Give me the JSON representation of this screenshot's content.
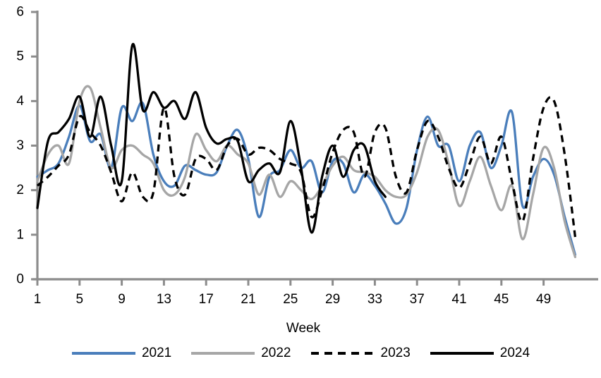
{
  "chart_data": {
    "type": "line",
    "title": "",
    "xlabel": "Week",
    "ylabel": "",
    "ylim": [
      0,
      6
    ],
    "xlim": [
      1,
      53
    ],
    "y_ticks": [
      0,
      1,
      2,
      3,
      4,
      5,
      6
    ],
    "x_ticks": [
      1,
      5,
      9,
      13,
      17,
      21,
      25,
      29,
      33,
      37,
      41,
      45,
      49
    ],
    "grid": false,
    "smooth": true,
    "legend_position": "bottom",
    "axis_color": "#8c8c8c",
    "background_color": "#ffffff",
    "series": [
      {
        "name": "2021",
        "color": "#4a7ebb",
        "style": "solid",
        "start_week": 1,
        "values": [
          2.3,
          2.45,
          2.6,
          3.2,
          3.9,
          3.1,
          3.25,
          2.5,
          3.85,
          3.55,
          3.95,
          2.8,
          2.2,
          2.1,
          2.55,
          2.45,
          2.35,
          2.4,
          3.0,
          3.35,
          2.7,
          1.4,
          2.3,
          2.45,
          2.9,
          2.5,
          2.65,
          1.95,
          2.65,
          2.6,
          1.95,
          2.35,
          2.1,
          1.7,
          1.25,
          1.6,
          2.9,
          3.65,
          3.0,
          3.0,
          2.2,
          3.0,
          3.3,
          2.5,
          3.0,
          3.75,
          1.65,
          2.3,
          2.7,
          2.35,
          1.4,
          0.55
        ]
      },
      {
        "name": "2022",
        "color": "#a6a6a6",
        "style": "solid",
        "start_week": 1,
        "values": [
          2.2,
          2.8,
          3.0,
          2.6,
          4.0,
          4.3,
          3.4,
          2.5,
          2.9,
          3.0,
          2.8,
          2.6,
          2.0,
          1.9,
          2.3,
          3.25,
          2.9,
          2.65,
          3.0,
          2.8,
          2.6,
          1.9,
          2.35,
          1.85,
          2.2,
          2.0,
          1.8,
          2.1,
          2.55,
          2.75,
          2.45,
          2.4,
          2.3,
          2.0,
          1.85,
          1.9,
          2.4,
          3.2,
          3.35,
          2.6,
          1.65,
          2.2,
          2.75,
          2.1,
          1.55,
          2.1,
          0.9,
          1.9,
          2.95,
          2.5,
          1.3,
          0.5
        ]
      },
      {
        "name": "2023",
        "color": "#000000",
        "style": "dashed",
        "start_week": 1,
        "values": [
          2.1,
          2.3,
          2.55,
          2.8,
          3.65,
          3.3,
          3.0,
          2.4,
          1.75,
          2.4,
          1.85,
          1.95,
          3.85,
          2.3,
          1.9,
          2.7,
          2.7,
          2.45,
          3.0,
          3.15,
          2.8,
          2.95,
          2.9,
          2.7,
          2.6,
          2.4,
          1.4,
          2.0,
          2.85,
          3.35,
          3.3,
          2.3,
          3.3,
          3.4,
          2.3,
          1.95,
          2.9,
          3.55,
          3.2,
          2.5,
          2.05,
          2.6,
          3.2,
          2.6,
          3.2,
          2.2,
          1.3,
          2.7,
          3.85,
          4.0,
          2.8,
          0.95
        ]
      },
      {
        "name": "2024",
        "color": "#000000",
        "style": "solid",
        "start_week": 1,
        "values": [
          1.6,
          3.1,
          3.3,
          3.6,
          4.1,
          3.2,
          4.1,
          3.0,
          2.2,
          5.25,
          3.8,
          4.2,
          3.85,
          4.0,
          3.6,
          4.2,
          3.4,
          3.05,
          3.15,
          3.1,
          2.2,
          2.45,
          2.6,
          2.4,
          3.55,
          2.5,
          1.05,
          2.3,
          3.0,
          2.3,
          2.9,
          3.0,
          2.2,
          1.85
        ]
      }
    ]
  }
}
